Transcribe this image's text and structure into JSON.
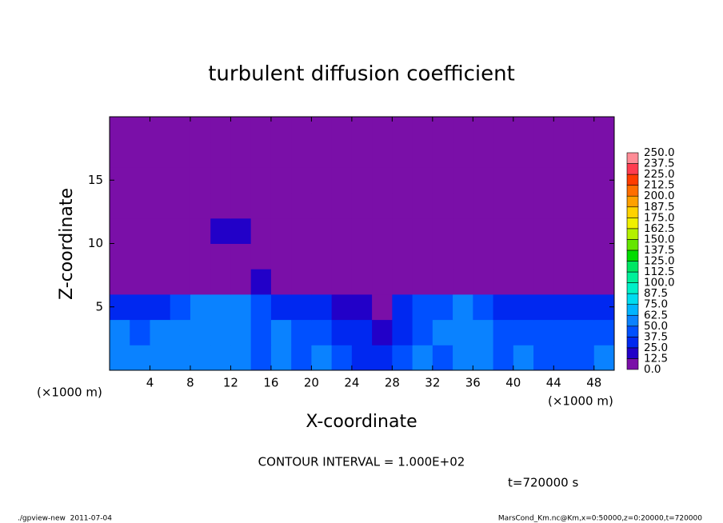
{
  "chart_data": {
    "type": "heatmap",
    "title": "turbulent diffusion coefficient",
    "xlabel": "X-coordinate",
    "ylabel": "Z-coordinate",
    "x_units": "(×1000 m)",
    "xlim": [
      0,
      50
    ],
    "ylim": [
      0,
      20
    ],
    "xticks": [
      4,
      8,
      12,
      16,
      20,
      24,
      28,
      32,
      36,
      40,
      44,
      48
    ],
    "yticks": [
      5,
      10,
      15
    ],
    "x": [
      1,
      3,
      5,
      7,
      9,
      11,
      13,
      15,
      17,
      19,
      21,
      23,
      25,
      27,
      29,
      31,
      33,
      35,
      37,
      39,
      41,
      43,
      45,
      47,
      49
    ],
    "y": [
      1,
      3,
      5,
      7,
      9,
      11,
      13,
      15,
      17,
      19
    ],
    "z": [
      [
        60,
        55,
        50,
        55,
        60,
        50,
        55,
        45,
        50,
        45,
        50,
        40,
        35,
        25,
        40,
        50,
        45,
        55,
        50,
        45,
        50,
        45,
        40,
        45,
        50
      ],
      [
        50,
        45,
        55,
        50,
        55,
        60,
        50,
        45,
        50,
        40,
        45,
        35,
        25,
        20,
        35,
        45,
        50,
        60,
        55,
        45,
        45,
        40,
        45,
        40,
        45
      ],
      [
        30,
        25,
        35,
        45,
        50,
        55,
        55,
        40,
        35,
        30,
        30,
        20,
        12.5,
        10,
        30,
        40,
        45,
        50,
        45,
        35,
        35,
        30,
        30,
        30,
        25
      ],
      [
        0,
        0,
        0,
        0,
        0,
        5,
        10,
        20,
        5,
        0,
        0,
        0,
        0,
        0,
        0,
        5,
        5,
        5,
        5,
        0,
        0,
        0,
        0,
        0,
        0
      ],
      [
        0,
        0,
        0,
        0,
        5,
        5,
        0,
        0,
        0,
        0,
        0,
        0,
        0,
        0,
        0,
        0,
        0,
        0,
        0,
        0,
        0,
        0,
        0,
        0,
        0
      ],
      [
        5,
        0,
        0,
        5,
        10,
        15,
        15,
        10,
        5,
        5,
        10,
        5,
        0,
        0,
        0,
        5,
        10,
        5,
        5,
        10,
        10,
        5,
        5,
        5,
        0
      ],
      [
        0,
        0,
        0,
        0,
        0,
        5,
        0,
        0,
        0,
        0,
        0,
        5,
        5,
        0,
        0,
        0,
        0,
        0,
        0,
        0,
        0,
        0,
        0,
        0,
        0
      ],
      [
        0,
        0,
        0,
        0,
        0,
        0,
        0,
        0,
        0,
        0,
        0,
        0,
        0,
        0,
        0,
        0,
        0,
        0,
        0,
        0,
        0,
        0,
        0,
        0,
        0
      ],
      [
        0,
        0,
        0,
        0,
        0,
        0,
        0,
        0,
        0,
        0,
        0,
        0,
        0,
        0,
        0,
        0,
        0,
        0,
        0,
        0,
        0,
        0,
        0,
        0,
        0
      ],
      [
        0,
        0,
        0,
        0,
        0,
        0,
        0,
        0,
        0,
        0,
        0,
        0,
        0,
        0,
        0,
        0,
        0,
        0,
        0,
        0,
        0,
        0,
        0,
        0,
        0
      ]
    ],
    "colorbar": {
      "levels": [
        {
          "value": 0,
          "label": "0.0"
        },
        {
          "value": 12.5,
          "label": "12.5"
        },
        {
          "value": 25,
          "label": "25.0"
        },
        {
          "value": 37.5,
          "label": "37.5"
        },
        {
          "value": 50,
          "label": "50.0"
        },
        {
          "value": 62.5,
          "label": "62.5"
        },
        {
          "value": 75,
          "label": "75.0"
        },
        {
          "value": 87.5,
          "label": "87.5"
        },
        {
          "value": 100,
          "label": "100.0"
        },
        {
          "value": 112.5,
          "label": "112.5"
        },
        {
          "value": 125,
          "label": "125.0"
        },
        {
          "value": 137.5,
          "label": "137.5"
        },
        {
          "value": 150,
          "label": "150.0"
        },
        {
          "value": 162.5,
          "label": "162.5"
        },
        {
          "value": 175,
          "label": "175.0"
        },
        {
          "value": 187.5,
          "label": "187.5"
        },
        {
          "value": 200,
          "label": "200.0"
        },
        {
          "value": 212.5,
          "label": "212.5"
        },
        {
          "value": 225,
          "label": "225.0"
        },
        {
          "value": 237.5,
          "label": "237.5"
        },
        {
          "value": 250,
          "label": "250.0"
        }
      ],
      "colors": [
        "#7a0fa8",
        "#2200c8",
        "#0028f0",
        "#0050ff",
        "#0a82ff",
        "#00b4ff",
        "#00dcf0",
        "#00f0c8",
        "#00f09a",
        "#00e664",
        "#00dc00",
        "#64e600",
        "#b4f000",
        "#f0f000",
        "#ffd200",
        "#ffa000",
        "#ff6e00",
        "#ff3c00",
        "#ff3c50",
        "#ff8c96"
      ]
    },
    "annotation": "CONTOUR INTERVAL = 1.000E+02",
    "time_label": "t=720000 s",
    "footer_left": "./gpview-new  2011-07-04",
    "footer_right": "MarsCond_Km.nc@Km,x=0:50000,z=0:20000,t=720000"
  }
}
